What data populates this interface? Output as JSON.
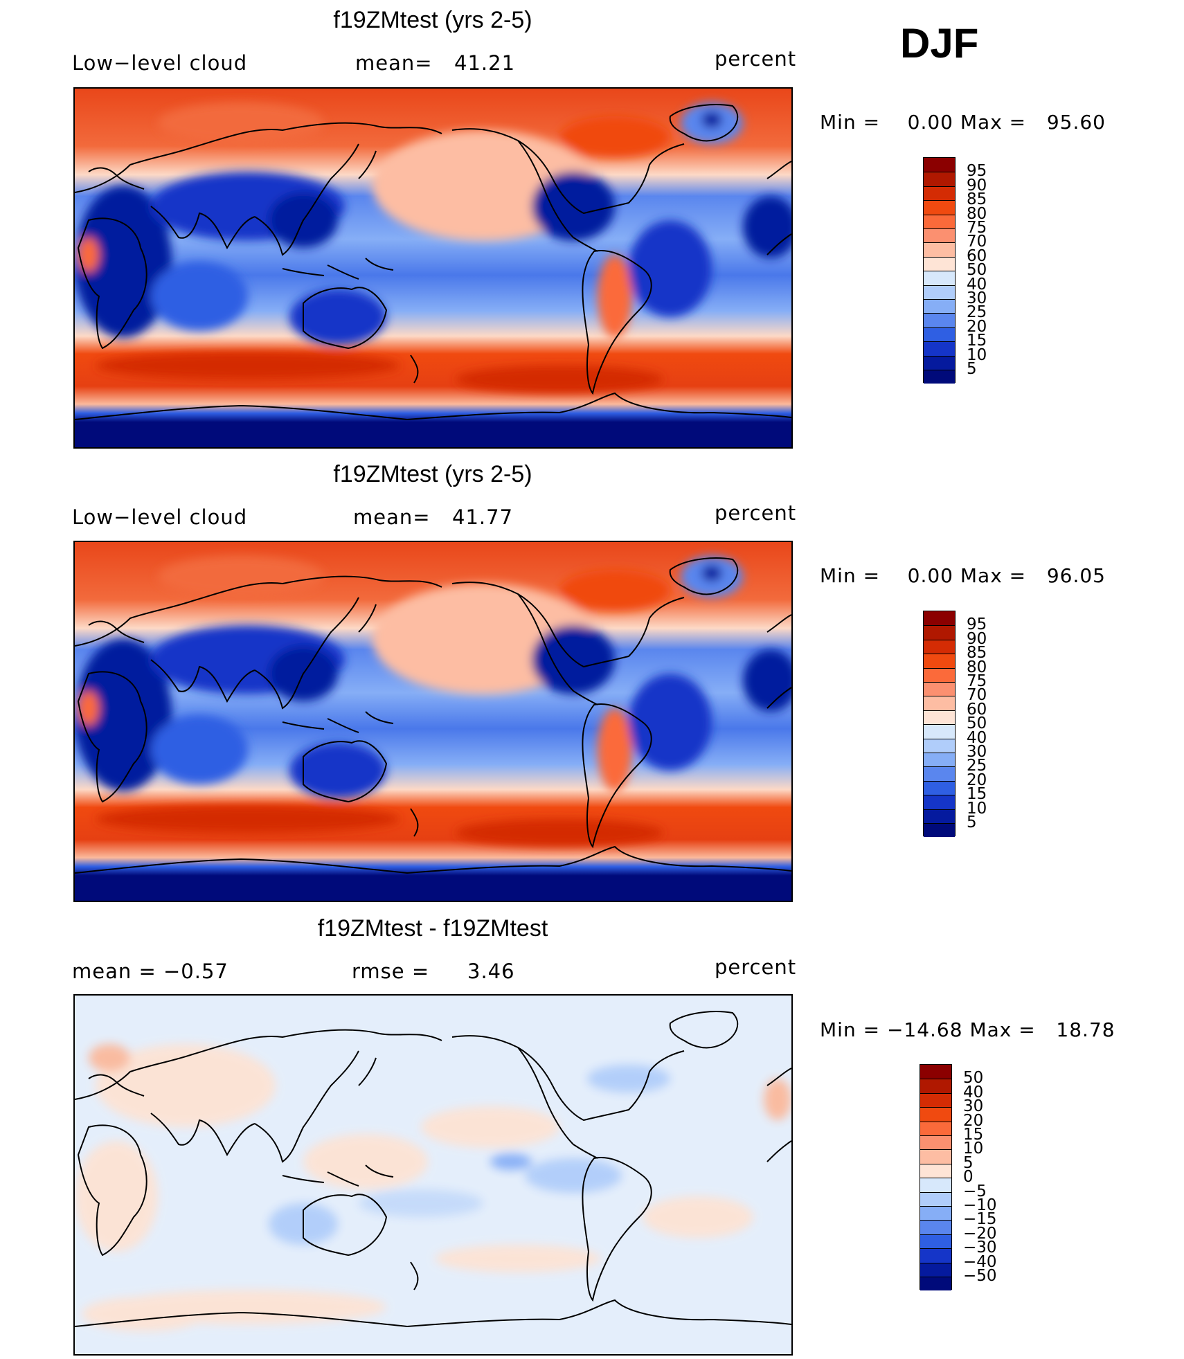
{
  "season": "DJF",
  "panels": [
    {
      "id": "case",
      "title": "f19ZMtest (yrs 2-5)",
      "left_label": "Low−level cloud",
      "stat_label": "mean=",
      "stat_value": "41.21",
      "unit": "percent",
      "min_text": "Min =    0.00 Max =   95.60",
      "field_type": "absolute"
    },
    {
      "id": "control",
      "title": "f19ZMtest (yrs 2-5)",
      "left_label": "Low−level cloud",
      "stat_label": "mean=",
      "stat_value": "41.77",
      "unit": "percent",
      "min_text": "Min =    0.00 Max =   96.05",
      "field_type": "absolute"
    },
    {
      "id": "difference",
      "title": "f19ZMtest - f19ZMtest",
      "left_label": "mean =   −0.57",
      "stat_label": "rmse =",
      "stat_value": "3.46",
      "unit": "percent",
      "min_text": "Min = −14.68 Max =   18.78",
      "field_type": "difference"
    }
  ],
  "colorbars": {
    "absolute": {
      "labels": [
        "95",
        "90",
        "85",
        "80",
        "75",
        "70",
        "60",
        "50",
        "40",
        "30",
        "25",
        "20",
        "15",
        "10",
        "5"
      ],
      "colors": [
        "#8b0000",
        "#b01800",
        "#d42c04",
        "#f04a10",
        "#fb6a3a",
        "#fb9070",
        "#fdbda3",
        "#fee4d6",
        "#d7e8fb",
        "#b0cdfa",
        "#86aef6",
        "#5a86ee",
        "#2f5fe3",
        "#1535c8",
        "#051a9e",
        "#000a7a"
      ]
    },
    "difference": {
      "labels": [
        "50",
        "40",
        "30",
        "20",
        "15",
        "10",
        "5",
        "0",
        "−5",
        "−10",
        "−15",
        "−20",
        "−30",
        "−40",
        "−50"
      ],
      "colors": [
        "#8b0000",
        "#b01800",
        "#d42c04",
        "#f04a10",
        "#fb6a3a",
        "#fb9070",
        "#fdbda3",
        "#fee4d6",
        "#d7e8fb",
        "#b0cdfa",
        "#86aef6",
        "#5a86ee",
        "#2f5fe3",
        "#1535c8",
        "#051a9e",
        "#000a7a"
      ]
    }
  }
}
